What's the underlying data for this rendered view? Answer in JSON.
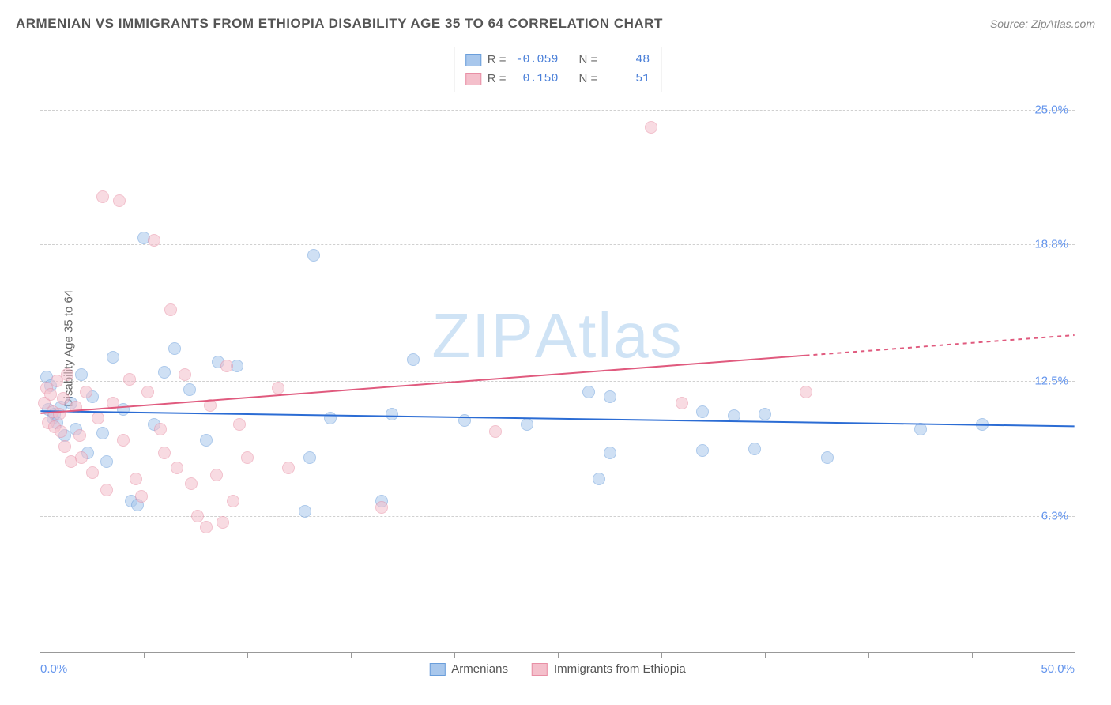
{
  "title": "ARMENIAN VS IMMIGRANTS FROM ETHIOPIA DISABILITY AGE 35 TO 64 CORRELATION CHART",
  "source": "Source: ZipAtlas.com",
  "watermark_zip": "ZIP",
  "watermark_atlas": "Atlas",
  "y_axis_title": "Disability Age 35 to 64",
  "chart": {
    "type": "scatter",
    "xlim": [
      0,
      50
    ],
    "ylim": [
      0,
      28
    ],
    "x_ticks": [
      0,
      5,
      10,
      15,
      20,
      25,
      30,
      35,
      40,
      45,
      50
    ],
    "x_label_min": "0.0%",
    "x_label_max": "50.0%",
    "y_gridlines": [
      6.3,
      12.5,
      18.8,
      25.0
    ],
    "y_tick_labels": [
      "6.3%",
      "12.5%",
      "18.8%",
      "25.0%"
    ],
    "background_color": "#ffffff",
    "grid_color": "#d0d0d0",
    "axis_color": "#999999",
    "point_radius": 8,
    "point_opacity": 0.55,
    "series": [
      {
        "name": "Armenians",
        "fill_color": "#a8c7ec",
        "stroke_color": "#6a9edb",
        "trend_color": "#2b6cd4",
        "trend_width": 2,
        "R": "-0.059",
        "N": "48",
        "trend": {
          "x1": 0,
          "y1": 11.1,
          "x2": 50,
          "y2": 10.4,
          "dash_from_x": null
        },
        "points": [
          [
            0.3,
            12.7
          ],
          [
            0.4,
            11.2
          ],
          [
            0.5,
            12.3
          ],
          [
            0.6,
            10.8
          ],
          [
            0.7,
            11.0
          ],
          [
            0.8,
            10.6
          ],
          [
            1.0,
            11.3
          ],
          [
            1.2,
            10.0
          ],
          [
            1.5,
            11.5
          ],
          [
            1.7,
            10.3
          ],
          [
            2.0,
            12.8
          ],
          [
            2.3,
            9.2
          ],
          [
            2.5,
            11.8
          ],
          [
            3.0,
            10.1
          ],
          [
            3.2,
            8.8
          ],
          [
            3.5,
            13.6
          ],
          [
            4.0,
            11.2
          ],
          [
            4.4,
            7.0
          ],
          [
            4.7,
            6.8
          ],
          [
            5.0,
            19.1
          ],
          [
            5.5,
            10.5
          ],
          [
            6.0,
            12.9
          ],
          [
            6.5,
            14.0
          ],
          [
            7.2,
            12.1
          ],
          [
            8.0,
            9.8
          ],
          [
            8.6,
            13.4
          ],
          [
            9.5,
            13.2
          ],
          [
            13.2,
            18.3
          ],
          [
            13.0,
            9.0
          ],
          [
            12.8,
            6.5
          ],
          [
            14.0,
            10.8
          ],
          [
            16.5,
            7.0
          ],
          [
            17.0,
            11.0
          ],
          [
            18.0,
            13.5
          ],
          [
            20.5,
            10.7
          ],
          [
            23.5,
            10.5
          ],
          [
            26.5,
            12.0
          ],
          [
            27.0,
            8.0
          ],
          [
            27.5,
            11.8
          ],
          [
            27.5,
            9.2
          ],
          [
            32.0,
            11.1
          ],
          [
            32.0,
            9.3
          ],
          [
            33.5,
            10.9
          ],
          [
            34.5,
            9.4
          ],
          [
            35.0,
            11.0
          ],
          [
            38.0,
            9.0
          ],
          [
            42.5,
            10.3
          ],
          [
            45.5,
            10.5
          ]
        ]
      },
      {
        "name": "Immigrants from Ethiopia",
        "fill_color": "#f4bfcb",
        "stroke_color": "#e88fa5",
        "trend_color": "#e05a7e",
        "trend_width": 2,
        "R": "0.150",
        "N": "51",
        "trend": {
          "x1": 0,
          "y1": 11.0,
          "x2": 50,
          "y2": 14.6,
          "dash_from_x": 37
        },
        "points": [
          [
            0.2,
            11.5
          ],
          [
            0.3,
            12.2
          ],
          [
            0.4,
            10.6
          ],
          [
            0.5,
            11.9
          ],
          [
            0.6,
            11.1
          ],
          [
            0.7,
            10.4
          ],
          [
            0.8,
            12.5
          ],
          [
            0.9,
            11.0
          ],
          [
            1.0,
            10.2
          ],
          [
            1.1,
            11.7
          ],
          [
            1.2,
            9.5
          ],
          [
            1.3,
            12.8
          ],
          [
            1.5,
            8.8
          ],
          [
            1.7,
            11.3
          ],
          [
            1.9,
            10.0
          ],
          [
            2.0,
            9.0
          ],
          [
            2.2,
            12.0
          ],
          [
            2.5,
            8.3
          ],
          [
            2.8,
            10.8
          ],
          [
            3.0,
            21.0
          ],
          [
            3.2,
            7.5
          ],
          [
            3.5,
            11.5
          ],
          [
            3.8,
            20.8
          ],
          [
            4.0,
            9.8
          ],
          [
            4.3,
            12.6
          ],
          [
            4.6,
            8.0
          ],
          [
            4.9,
            7.2
          ],
          [
            5.2,
            12.0
          ],
          [
            5.5,
            19.0
          ],
          [
            5.8,
            10.3
          ],
          [
            6.0,
            9.2
          ],
          [
            6.3,
            15.8
          ],
          [
            6.6,
            8.5
          ],
          [
            7.0,
            12.8
          ],
          [
            7.3,
            7.8
          ],
          [
            7.6,
            6.3
          ],
          [
            8.0,
            5.8
          ],
          [
            8.2,
            11.4
          ],
          [
            8.5,
            8.2
          ],
          [
            8.8,
            6.0
          ],
          [
            9.0,
            13.2
          ],
          [
            9.3,
            7.0
          ],
          [
            9.6,
            10.5
          ],
          [
            10.0,
            9.0
          ],
          [
            11.5,
            12.2
          ],
          [
            12.0,
            8.5
          ],
          [
            16.5,
            6.7
          ],
          [
            22.0,
            10.2
          ],
          [
            29.5,
            24.2
          ],
          [
            31.0,
            11.5
          ],
          [
            37.0,
            12.0
          ]
        ]
      }
    ]
  },
  "legend_bottom": {
    "series1_label": "Armenians",
    "series2_label": "Immigrants from Ethiopia"
  },
  "stats_labels": {
    "R": "R =",
    "N": "N ="
  }
}
